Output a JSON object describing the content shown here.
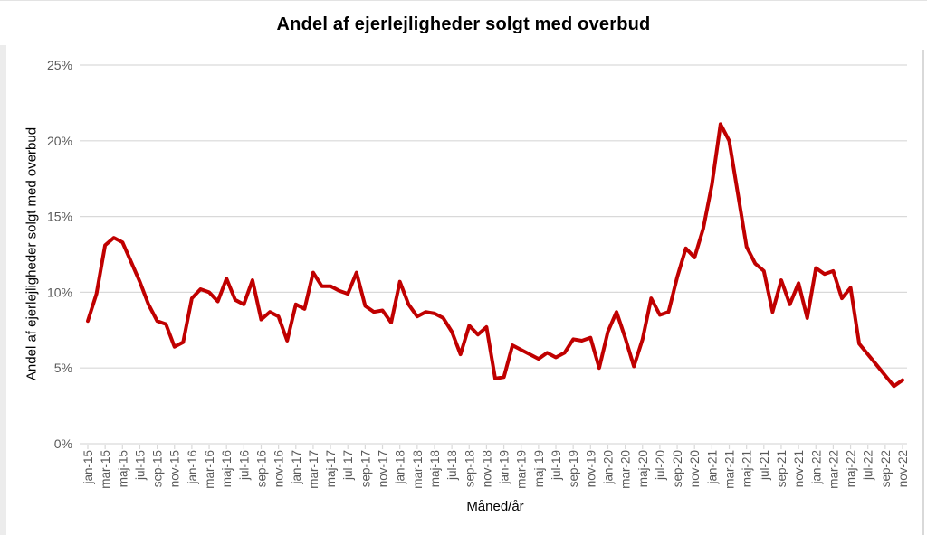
{
  "page": {
    "background": "#ffffff"
  },
  "chart_data": {
    "type": "line",
    "title": "Andel af ejerlejligheder solgt med overbud",
    "xlabel": "Måned/år",
    "ylabel": "Andel af ejerlejligheder solgt med overbud",
    "x": [
      "jan-15",
      "feb-15",
      "mar-15",
      "apr-15",
      "maj-15",
      "jun-15",
      "jul-15",
      "aug-15",
      "sep-15",
      "okt-15",
      "nov-15",
      "dec-15",
      "jan-16",
      "feb-16",
      "mar-16",
      "apr-16",
      "maj-16",
      "jun-16",
      "jul-16",
      "aug-16",
      "sep-16",
      "okt-16",
      "nov-16",
      "dec-16",
      "jan-17",
      "feb-17",
      "mar-17",
      "apr-17",
      "maj-17",
      "jun-17",
      "jul-17",
      "aug-17",
      "sep-17",
      "okt-17",
      "nov-17",
      "dec-17",
      "jan-18",
      "feb-18",
      "mar-18",
      "apr-18",
      "maj-18",
      "jun-18",
      "jul-18",
      "aug-18",
      "sep-18",
      "okt-18",
      "nov-18",
      "dec-18",
      "jan-19",
      "feb-19",
      "mar-19",
      "apr-19",
      "maj-19",
      "jun-19",
      "jul-19",
      "aug-19",
      "sep-19",
      "okt-19",
      "nov-19",
      "dec-19",
      "jan-20",
      "feb-20",
      "mar-20",
      "apr-20",
      "maj-20",
      "jun-20",
      "jul-20",
      "aug-20",
      "sep-20",
      "okt-20",
      "nov-20",
      "dec-20",
      "jan-21",
      "feb-21",
      "mar-21",
      "apr-21",
      "maj-21",
      "jun-21",
      "jul-21",
      "aug-21",
      "sep-21",
      "okt-21",
      "nov-21",
      "dec-21",
      "jan-22",
      "feb-22",
      "mar-22",
      "apr-22",
      "maj-22",
      "jun-22",
      "jul-22",
      "aug-22",
      "sep-22",
      "okt-22",
      "nov-22"
    ],
    "values": [
      8.1,
      9.9,
      13.1,
      13.6,
      13.3,
      12.0,
      10.7,
      9.2,
      8.1,
      7.9,
      6.4,
      6.7,
      9.6,
      10.2,
      10.0,
      9.4,
      10.9,
      9.5,
      9.2,
      10.8,
      8.2,
      8.7,
      8.4,
      6.8,
      9.2,
      8.9,
      11.3,
      10.4,
      10.4,
      10.1,
      9.9,
      11.3,
      9.1,
      8.7,
      8.8,
      8.0,
      10.7,
      9.2,
      8.4,
      8.7,
      8.6,
      8.3,
      7.4,
      5.9,
      7.8,
      7.2,
      7.7,
      4.3,
      4.4,
      6.5,
      6.2,
      5.9,
      5.6,
      6.0,
      5.7,
      6.0,
      6.9,
      6.8,
      7.0,
      5.0,
      7.4,
      8.7,
      7.0,
      5.1,
      6.9,
      9.6,
      8.5,
      8.7,
      11.0,
      12.9,
      12.3,
      14.2,
      17.1,
      21.1,
      20.0,
      16.5,
      13.0,
      11.9,
      11.4,
      8.7,
      10.8,
      9.2,
      10.6,
      8.3,
      11.6,
      11.2,
      11.4,
      9.6,
      10.3,
      6.6,
      5.9,
      5.2,
      4.5,
      3.8,
      4.2
    ],
    "ylim": [
      0,
      25
    ],
    "y_ticks": [
      0,
      5,
      10,
      15,
      20,
      25
    ],
    "y_tick_suffix": "%",
    "x_tick_every": 2,
    "grid": "horizontal",
    "legend": "none",
    "line_color": "#C00000",
    "line_width": 4,
    "grid_color": "#D9D9D9",
    "tick_label_color": "#595959"
  }
}
